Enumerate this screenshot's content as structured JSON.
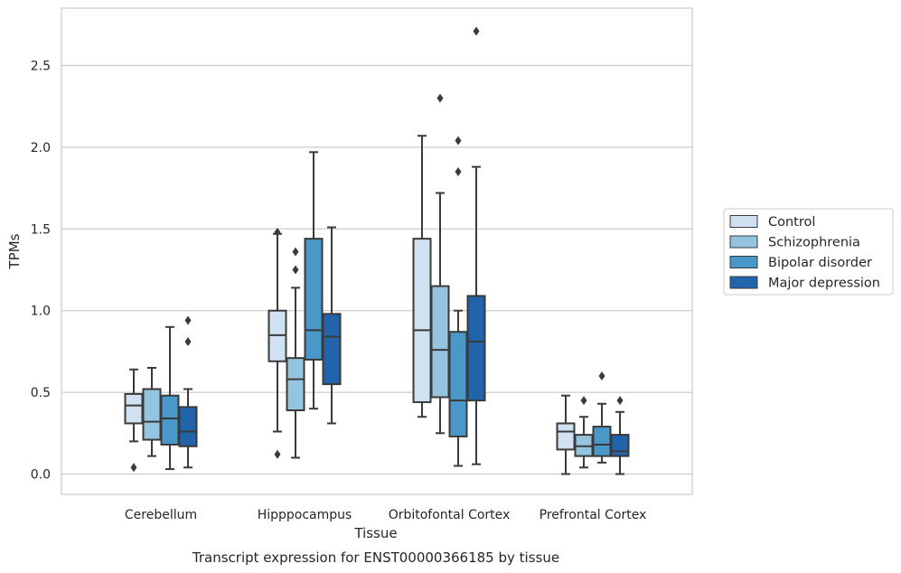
{
  "chart_data": {
    "type": "box",
    "xlabel": "Tissue",
    "ylabel": "TPMs",
    "caption": "Transcript expression for ENST00000366185 by tissue",
    "ylim": [
      -0.13,
      2.85
    ],
    "yticks": [
      0.0,
      0.5,
      1.0,
      1.5,
      2.0,
      2.5
    ],
    "ytick_labels": [
      "0.0",
      "0.5",
      "1.0",
      "1.5",
      "2.0",
      "2.5"
    ],
    "grid": "horizontal",
    "legend_position": "right",
    "categories": [
      "Cerebellum",
      "Hipppocampus",
      "Orbitofontal Cortex",
      "Prefrontal Cortex"
    ],
    "series": [
      {
        "name": "Control",
        "color": "#d0e1f2",
        "boxes": [
          {
            "whislo": 0.2,
            "q1": 0.31,
            "med": 0.42,
            "q3": 0.49,
            "whishi": 0.64,
            "fliers": [
              0.04
            ]
          },
          {
            "whislo": 0.26,
            "q1": 0.69,
            "med": 0.85,
            "q3": 1.0,
            "whishi": 1.47,
            "fliers": [
              0.12,
              1.48
            ]
          },
          {
            "whislo": 0.35,
            "q1": 0.44,
            "med": 0.88,
            "q3": 1.44,
            "whishi": 2.07,
            "fliers": []
          },
          {
            "whislo": 0.0,
            "q1": 0.15,
            "med": 0.26,
            "q3": 0.31,
            "whishi": 0.48,
            "fliers": []
          }
        ]
      },
      {
        "name": "Schizophrenia",
        "color": "#94c4df",
        "boxes": [
          {
            "whislo": 0.11,
            "q1": 0.21,
            "med": 0.32,
            "q3": 0.52,
            "whishi": 0.65,
            "fliers": []
          },
          {
            "whislo": 0.1,
            "q1": 0.39,
            "med": 0.58,
            "q3": 0.71,
            "whishi": 1.14,
            "fliers": [
              1.25,
              1.36
            ]
          },
          {
            "whislo": 0.25,
            "q1": 0.47,
            "med": 0.76,
            "q3": 1.15,
            "whishi": 1.72,
            "fliers": [
              2.3
            ]
          },
          {
            "whislo": 0.04,
            "q1": 0.11,
            "med": 0.17,
            "q3": 0.24,
            "whishi": 0.35,
            "fliers": [
              0.45
            ]
          }
        ]
      },
      {
        "name": "Bipolar disorder",
        "color": "#4a98c9",
        "boxes": [
          {
            "whislo": 0.03,
            "q1": 0.18,
            "med": 0.34,
            "q3": 0.48,
            "whishi": 0.9,
            "fliers": []
          },
          {
            "whislo": 0.4,
            "q1": 0.7,
            "med": 0.88,
            "q3": 1.44,
            "whishi": 1.97,
            "fliers": []
          },
          {
            "whislo": 0.05,
            "q1": 0.23,
            "med": 0.45,
            "q3": 0.87,
            "whishi": 1.0,
            "fliers": [
              1.85,
              2.04
            ]
          },
          {
            "whislo": 0.07,
            "q1": 0.11,
            "med": 0.18,
            "q3": 0.29,
            "whishi": 0.43,
            "fliers": [
              0.6
            ]
          }
        ]
      },
      {
        "name": "Major depression",
        "color": "#2264ab",
        "boxes": [
          {
            "whislo": 0.04,
            "q1": 0.17,
            "med": 0.26,
            "q3": 0.41,
            "whishi": 0.52,
            "fliers": [
              0.81,
              0.94
            ]
          },
          {
            "whislo": 0.31,
            "q1": 0.55,
            "med": 0.84,
            "q3": 0.98,
            "whishi": 1.51,
            "fliers": []
          },
          {
            "whislo": 0.06,
            "q1": 0.45,
            "med": 0.81,
            "q3": 1.09,
            "whishi": 1.88,
            "fliers": [
              2.71
            ]
          },
          {
            "whislo": 0.0,
            "q1": 0.11,
            "med": 0.14,
            "q3": 0.24,
            "whishi": 0.38,
            "fliers": [
              0.45
            ]
          }
        ]
      }
    ]
  }
}
